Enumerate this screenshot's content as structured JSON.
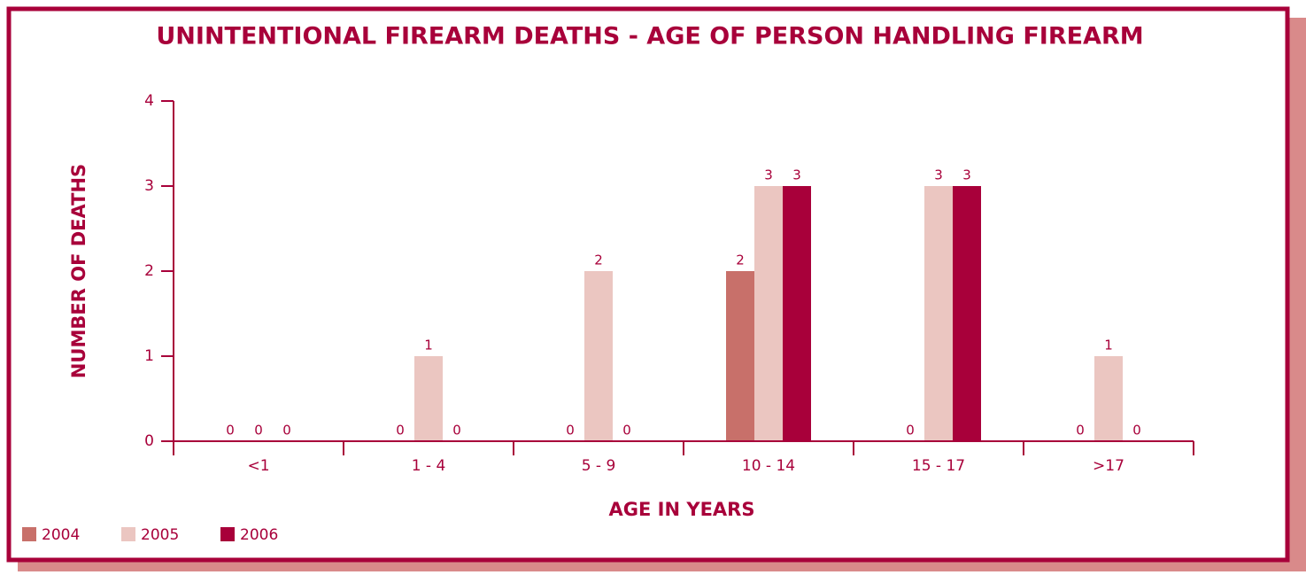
{
  "chart_data": {
    "type": "bar",
    "title": "UNINTENTIONAL FIREARM DEATHS - AGE OF PERSON HANDLING FIREARM",
    "x_label": "AGE IN YEARS",
    "y_label": "NUMBER OF DEATHS",
    "categories": [
      "<1",
      "1 - 4",
      "5 - 9",
      "10 - 14",
      "15 - 17",
      ">17"
    ],
    "series": [
      {
        "name": "2004",
        "color": "#c8706a",
        "values": [
          0,
          0,
          0,
          2,
          0,
          0
        ]
      },
      {
        "name": "2005",
        "color": "#ebc6c1",
        "values": [
          0,
          1,
          2,
          3,
          3,
          1
        ]
      },
      {
        "name": "2006",
        "color": "#a8003a",
        "values": [
          0,
          0,
          0,
          3,
          3,
          0
        ]
      }
    ],
    "ylim": [
      0,
      4
    ],
    "yticks": [
      0,
      1,
      2,
      3,
      4
    ],
    "grid": false,
    "legend": "bottom-left"
  }
}
